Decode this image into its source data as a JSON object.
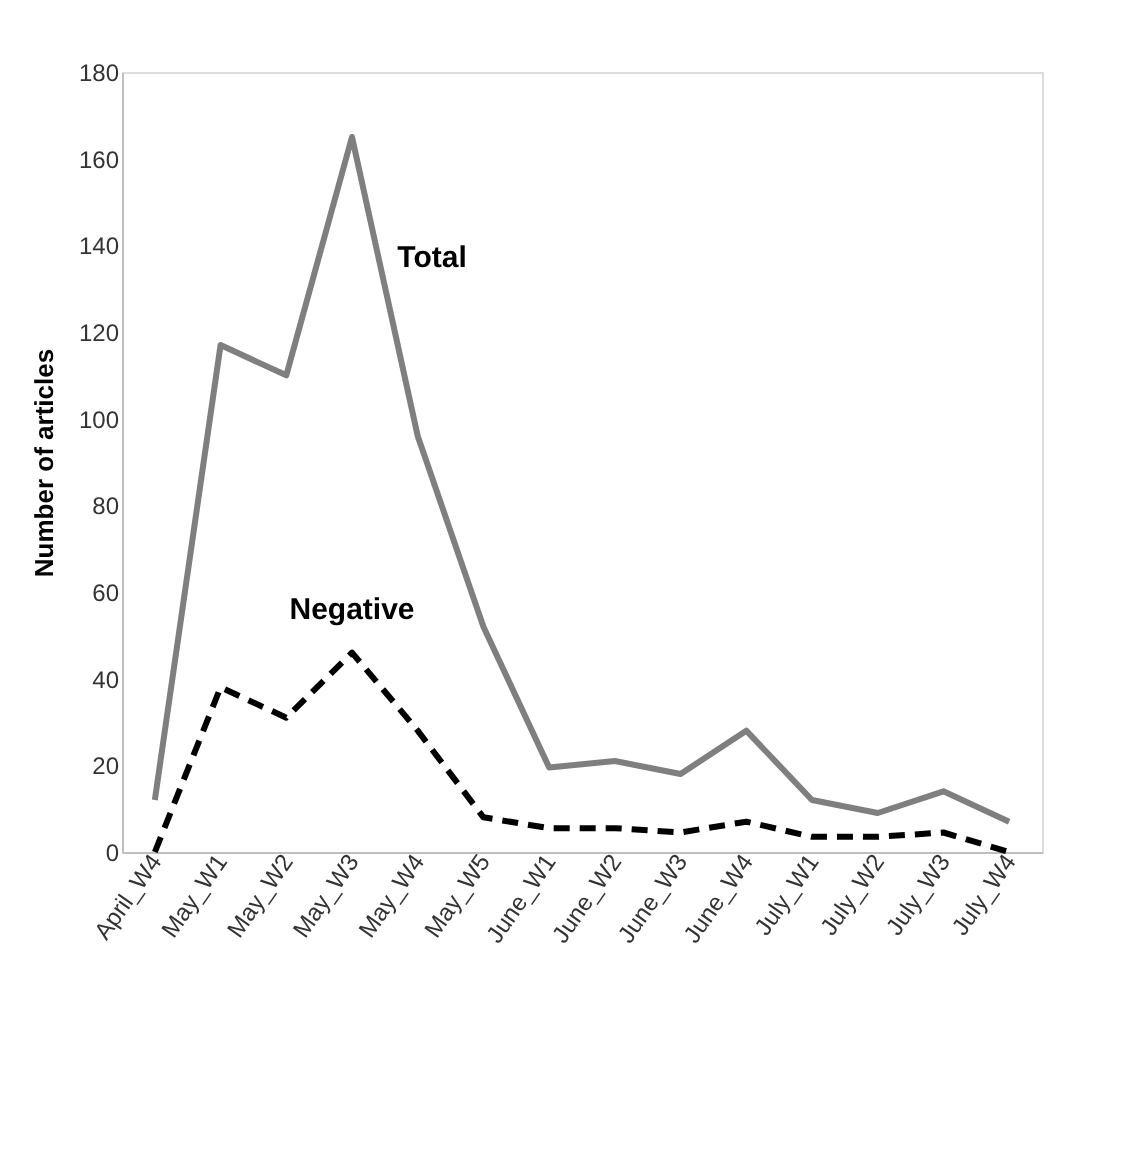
{
  "chart_data": {
    "type": "line",
    "ylabel": "Number of articles",
    "categories": [
      "April_W4",
      "May_W1",
      "May_W2",
      "May_W3",
      "May_W4",
      "May_W5",
      "June_W1",
      "June_W2",
      "June_W3",
      "June_W4",
      "July_W1",
      "July_W2",
      "July_W3",
      "July_W4"
    ],
    "series": [
      {
        "name": "Total",
        "color": "#7f7f7f",
        "line_style": "solid",
        "values": [
          12,
          117,
          110,
          165,
          96,
          52,
          19.5,
          21,
          18,
          28,
          12,
          9,
          14,
          7
        ]
      },
      {
        "name": "Negative",
        "color": "#000000",
        "line_style": "dashed",
        "values": [
          0,
          38,
          31,
          46,
          28,
          8,
          5.5,
          5.5,
          4.5,
          7,
          3.5,
          3.5,
          4.5,
          0
        ]
      }
    ],
    "ylim": [
      0,
      180
    ],
    "yticks": [
      0,
      20,
      40,
      60,
      80,
      100,
      120,
      140,
      160,
      180
    ],
    "marker": "none"
  }
}
